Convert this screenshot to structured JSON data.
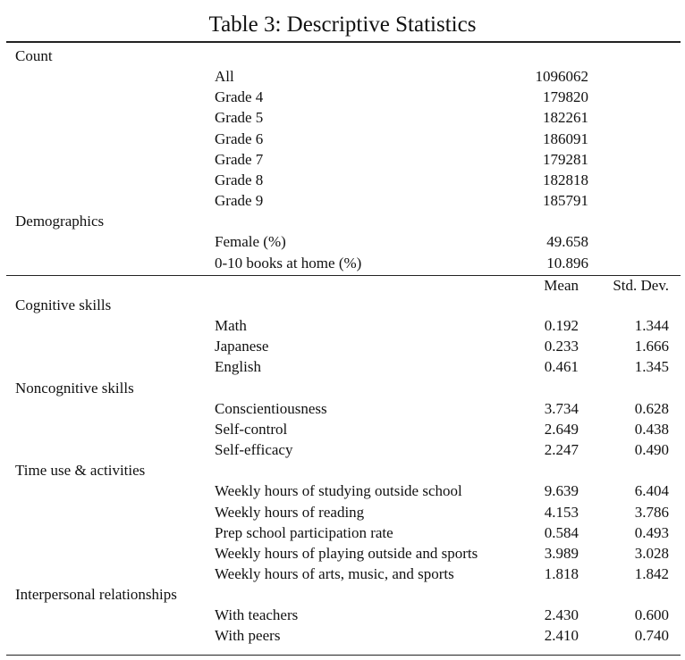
{
  "title": "Table 3: Descriptive Statistics",
  "panels": [
    {
      "sections": [
        {
          "label": "Count",
          "rows": [
            {
              "label": "All",
              "values": [
                "1096062"
              ]
            },
            {
              "label": "Grade 4",
              "values": [
                "179820"
              ]
            },
            {
              "label": "Grade 5",
              "values": [
                "182261"
              ]
            },
            {
              "label": "Grade 6",
              "values": [
                "186091"
              ]
            },
            {
              "label": "Grade 7",
              "values": [
                "179281"
              ]
            },
            {
              "label": "Grade 8",
              "values": [
                "182818"
              ]
            },
            {
              "label": "Grade 9",
              "values": [
                "185791"
              ]
            }
          ]
        },
        {
          "label": "Demographics",
          "rows": [
            {
              "label": "Female (%)",
              "values": [
                "49.658"
              ]
            },
            {
              "label": "0-10 books at home (%)",
              "values": [
                "10.896"
              ]
            }
          ]
        }
      ]
    },
    {
      "header": [
        "Mean",
        "Std. Dev."
      ],
      "sections": [
        {
          "label": "Cognitive skills",
          "rows": [
            {
              "label": "Math",
              "values": [
                "0.192",
                "1.344"
              ]
            },
            {
              "label": "Japanese",
              "values": [
                "0.233",
                "1.666"
              ]
            },
            {
              "label": "English",
              "values": [
                "0.461",
                "1.345"
              ]
            }
          ]
        },
        {
          "label": "Noncognitive skills",
          "rows": [
            {
              "label": "Conscientiousness",
              "values": [
                "3.734",
                "0.628"
              ]
            },
            {
              "label": "Self-control",
              "values": [
                "2.649",
                "0.438"
              ]
            },
            {
              "label": "Self-efficacy",
              "values": [
                "2.247",
                "0.490"
              ]
            }
          ]
        },
        {
          "label": "Time use & activities",
          "rows": [
            {
              "label": "Weekly hours of studying outside school",
              "values": [
                "9.639",
                "6.404"
              ]
            },
            {
              "label": "Weekly hours of reading",
              "values": [
                "4.153",
                "3.786"
              ]
            },
            {
              "label": "Prep school participation rate",
              "values": [
                "0.584",
                "0.493"
              ]
            },
            {
              "label": "Weekly hours of playing outside and sports",
              "values": [
                "3.989",
                "3.028"
              ]
            },
            {
              "label": "Weekly hours of arts, music, and sports",
              "values": [
                "1.818",
                "1.842"
              ]
            }
          ]
        },
        {
          "label": "Interpersonal relationships",
          "rows": [
            {
              "label": "With teachers",
              "values": [
                "2.430",
                "0.600"
              ]
            },
            {
              "label": "With peers",
              "values": [
                "2.410",
                "0.740"
              ]
            }
          ]
        }
      ]
    }
  ]
}
